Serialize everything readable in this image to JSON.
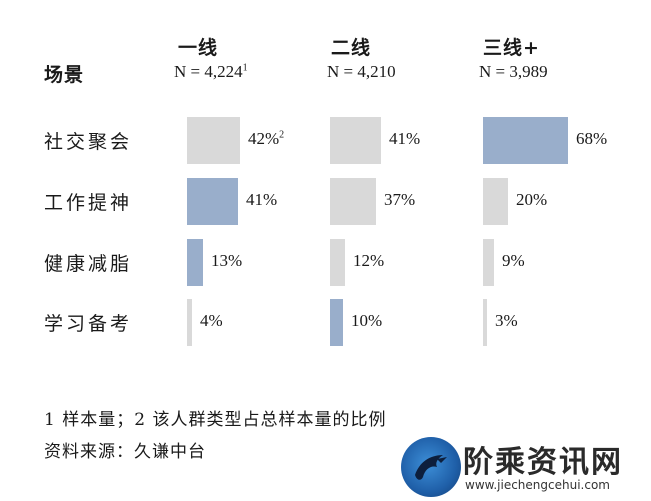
{
  "chart_data": {
    "type": "bar",
    "title": "",
    "row_header": "场景",
    "columns": [
      {
        "name": "一线",
        "n_label": "N = 4,224",
        "n_sup": "1"
      },
      {
        "name": "二线",
        "n_label": "N = 4,210",
        "n_sup": ""
      },
      {
        "name": "三线+",
        "n_label": "N = 3,989",
        "n_sup": ""
      }
    ],
    "categories": [
      "社交聚会",
      "工作提神",
      "健康减脂",
      "学习备考"
    ],
    "values": [
      [
        42,
        41,
        68
      ],
      [
        41,
        37,
        20
      ],
      [
        13,
        12,
        9
      ],
      [
        4,
        10,
        3
      ]
    ],
    "value_labels": [
      [
        "42%",
        "41%",
        "68%"
      ],
      [
        "41%",
        "37%",
        "20%"
      ],
      [
        "13%",
        "12%",
        "9%"
      ],
      [
        "4%",
        "10%",
        "3%"
      ]
    ],
    "value_sups": [
      [
        "2",
        "",
        ""
      ],
      [
        "",
        "",
        ""
      ],
      [
        "",
        "",
        ""
      ],
      [
        "",
        "",
        ""
      ]
    ],
    "highlight": [
      [
        false,
        false,
        true
      ],
      [
        true,
        false,
        false
      ],
      [
        true,
        false,
        false
      ],
      [
        false,
        true,
        false
      ]
    ],
    "colors": {
      "normal": "#d9d9d9",
      "highlight": "#99aecb"
    }
  },
  "footnotes": {
    "note": "1 样本量；2 该人群类型占总样本量的比例",
    "source": "资料来源：久谦中台"
  },
  "watermark": {
    "logo_icon": "eagle-logo-icon",
    "text": "阶乘资讯网",
    "url": "www.jiechengcehui.com"
  }
}
